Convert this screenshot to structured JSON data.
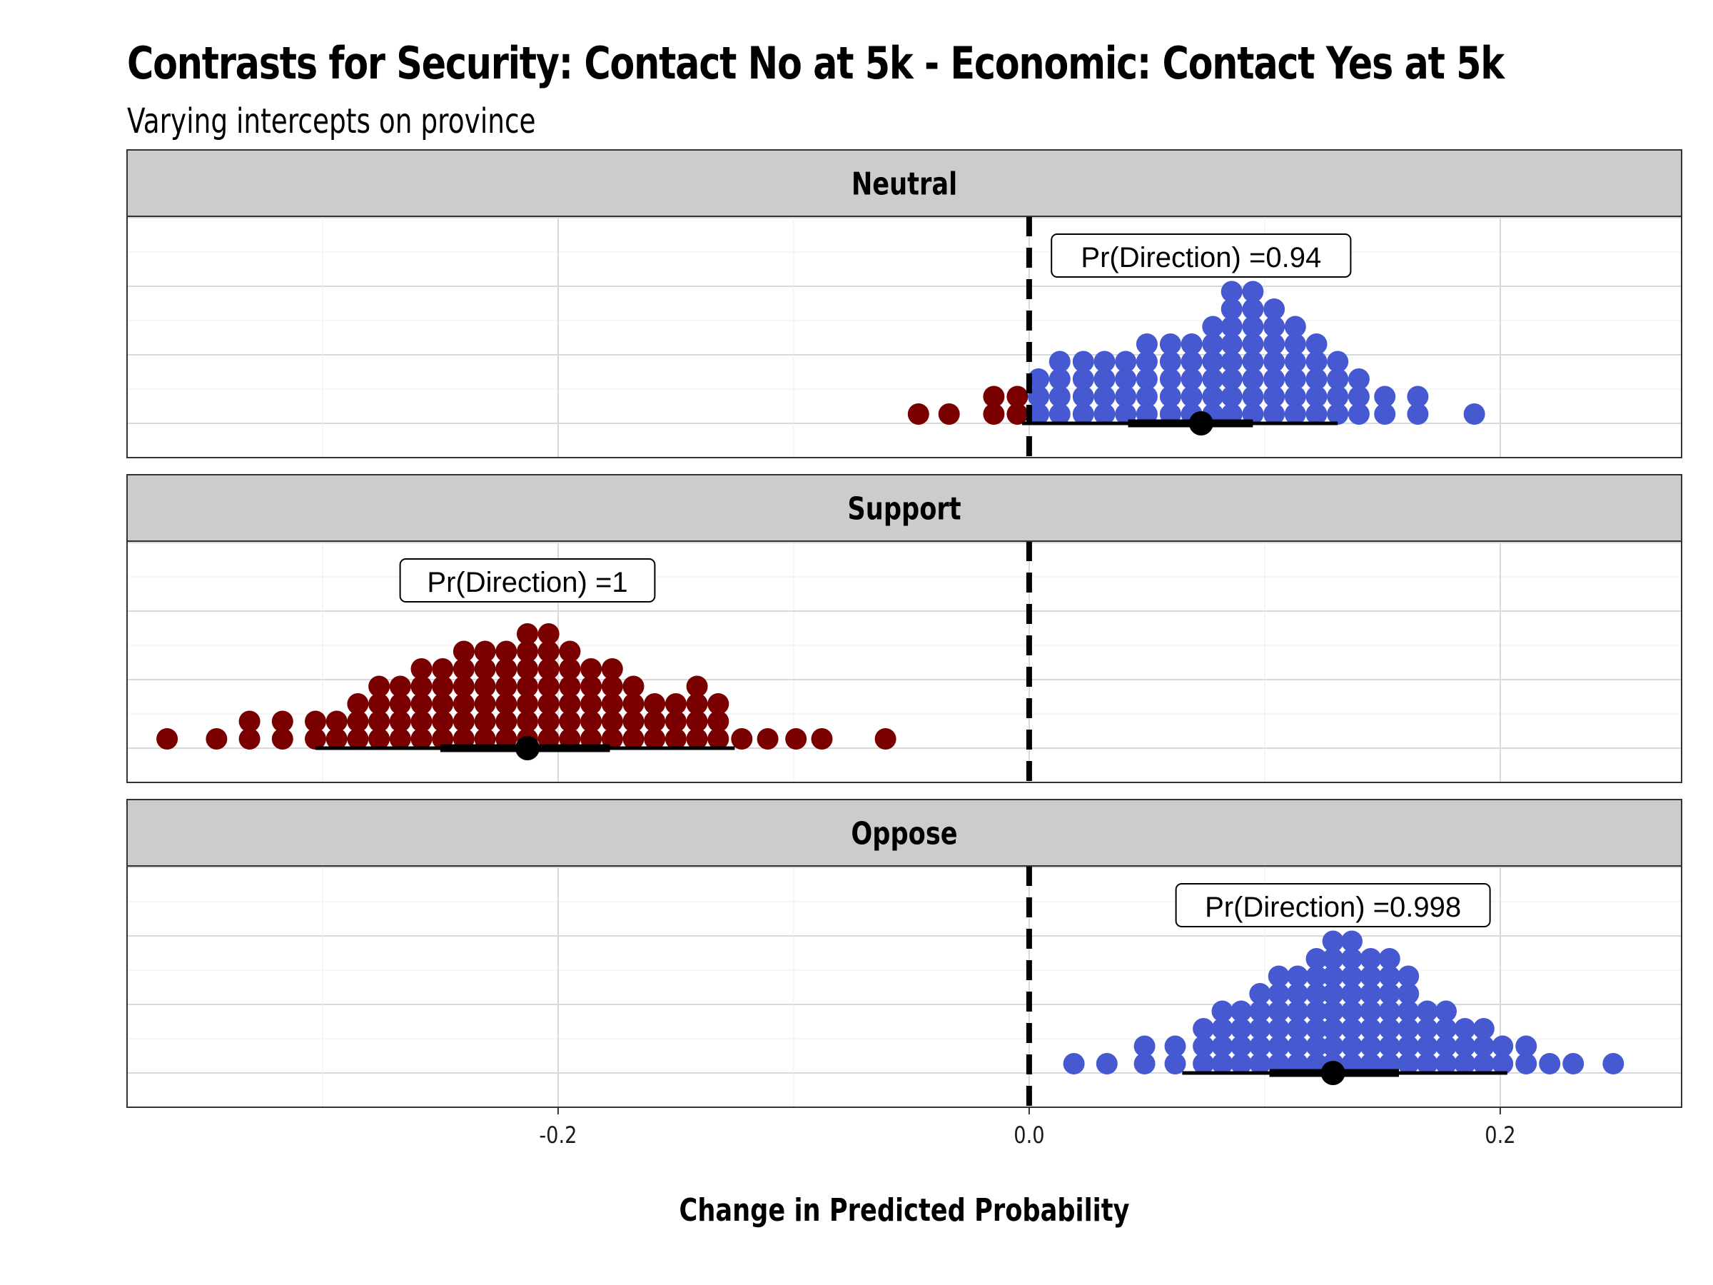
{
  "title": "Contrasts for Security: Contact No at 5k - Economic: Contact Yes at 5k",
  "subtitle": "Varying intercepts on province",
  "colors": {
    "positive": "#4759d1",
    "negative": "#7a0000",
    "strip_bg": "#cccccc",
    "summary": "#000000"
  },
  "chart_data": {
    "type": "dotplot",
    "title": "Contrasts for Security: Contact No at 5k - Economic: Contact Yes at 5k",
    "subtitle": "Varying intercepts on province",
    "xlabel": "Change in Predicted Probability",
    "ylabel": "",
    "xlim": [
      -0.383,
      0.277
    ],
    "x_ticks": [
      -0.2,
      0.0,
      0.2
    ],
    "x_tick_labels": [
      "-0.2",
      "0.0",
      "0.2"
    ],
    "reference_line": 0.0,
    "bin_width": 0.0092,
    "facets": [
      {
        "name": "Neutral",
        "pd_label": "Pr(Direction) =0.94",
        "pd_x": 0.073,
        "point": 0.073,
        "interval_66": [
          0.042,
          0.095
        ],
        "interval_95": [
          -0.003,
          0.131
        ],
        "dot_columns": [
          {
            "x": -0.047,
            "count": 1
          },
          {
            "x": -0.034,
            "count": 1
          },
          {
            "x": -0.015,
            "count": 2
          },
          {
            "x": -0.005,
            "count": 2
          },
          {
            "x": 0.004,
            "count": 3
          },
          {
            "x": 0.013,
            "count": 4
          },
          {
            "x": 0.023,
            "count": 4
          },
          {
            "x": 0.032,
            "count": 4
          },
          {
            "x": 0.041,
            "count": 4
          },
          {
            "x": 0.05,
            "count": 5
          },
          {
            "x": 0.06,
            "count": 5
          },
          {
            "x": 0.069,
            "count": 5
          },
          {
            "x": 0.078,
            "count": 6
          },
          {
            "x": 0.086,
            "count": 8
          },
          {
            "x": 0.095,
            "count": 8
          },
          {
            "x": 0.104,
            "count": 7
          },
          {
            "x": 0.113,
            "count": 6
          },
          {
            "x": 0.122,
            "count": 5
          },
          {
            "x": 0.131,
            "count": 4
          },
          {
            "x": 0.14,
            "count": 3
          },
          {
            "x": 0.151,
            "count": 2
          },
          {
            "x": 0.165,
            "count": 2
          },
          {
            "x": 0.189,
            "count": 1
          }
        ]
      },
      {
        "name": "Support",
        "pd_label": "Pr(Direction) =1",
        "pd_x": -0.213,
        "point": -0.213,
        "interval_66": [
          -0.25,
          -0.178
        ],
        "interval_95": [
          -0.303,
          -0.125
        ],
        "dot_columns": [
          {
            "x": -0.366,
            "count": 1
          },
          {
            "x": -0.345,
            "count": 1
          },
          {
            "x": -0.331,
            "count": 2
          },
          {
            "x": -0.317,
            "count": 2
          },
          {
            "x": -0.303,
            "count": 2
          },
          {
            "x": -0.294,
            "count": 2
          },
          {
            "x": -0.285,
            "count": 3
          },
          {
            "x": -0.276,
            "count": 4
          },
          {
            "x": -0.267,
            "count": 4
          },
          {
            "x": -0.258,
            "count": 5
          },
          {
            "x": -0.249,
            "count": 5
          },
          {
            "x": -0.24,
            "count": 6
          },
          {
            "x": -0.231,
            "count": 6
          },
          {
            "x": -0.222,
            "count": 6
          },
          {
            "x": -0.213,
            "count": 7
          },
          {
            "x": -0.204,
            "count": 7
          },
          {
            "x": -0.195,
            "count": 6
          },
          {
            "x": -0.186,
            "count": 5
          },
          {
            "x": -0.177,
            "count": 5
          },
          {
            "x": -0.168,
            "count": 4
          },
          {
            "x": -0.159,
            "count": 3
          },
          {
            "x": -0.15,
            "count": 3
          },
          {
            "x": -0.141,
            "count": 4
          },
          {
            "x": -0.132,
            "count": 3
          },
          {
            "x": -0.122,
            "count": 1
          },
          {
            "x": -0.111,
            "count": 1
          },
          {
            "x": -0.099,
            "count": 1
          },
          {
            "x": -0.088,
            "count": 1
          },
          {
            "x": -0.061,
            "count": 1
          }
        ]
      },
      {
        "name": "Oppose",
        "pd_label": "Pr(Direction) =0.998",
        "pd_x": 0.129,
        "point": 0.129,
        "interval_66": [
          0.102,
          0.157
        ],
        "interval_95": [
          0.065,
          0.203
        ],
        "dot_columns": [
          {
            "x": 0.019,
            "count": 1
          },
          {
            "x": 0.033,
            "count": 1
          },
          {
            "x": 0.049,
            "count": 2
          },
          {
            "x": 0.062,
            "count": 2
          },
          {
            "x": 0.074,
            "count": 3
          },
          {
            "x": 0.082,
            "count": 4
          },
          {
            "x": 0.09,
            "count": 4
          },
          {
            "x": 0.098,
            "count": 5
          },
          {
            "x": 0.106,
            "count": 6
          },
          {
            "x": 0.114,
            "count": 6
          },
          {
            "x": 0.122,
            "count": 7
          },
          {
            "x": 0.129,
            "count": 8
          },
          {
            "x": 0.137,
            "count": 8
          },
          {
            "x": 0.145,
            "count": 7
          },
          {
            "x": 0.153,
            "count": 7
          },
          {
            "x": 0.161,
            "count": 6
          },
          {
            "x": 0.169,
            "count": 4
          },
          {
            "x": 0.177,
            "count": 4
          },
          {
            "x": 0.185,
            "count": 3
          },
          {
            "x": 0.193,
            "count": 3
          },
          {
            "x": 0.201,
            "count": 2
          },
          {
            "x": 0.211,
            "count": 2
          },
          {
            "x": 0.221,
            "count": 1
          },
          {
            "x": 0.231,
            "count": 1
          },
          {
            "x": 0.248,
            "count": 1
          }
        ]
      }
    ]
  }
}
